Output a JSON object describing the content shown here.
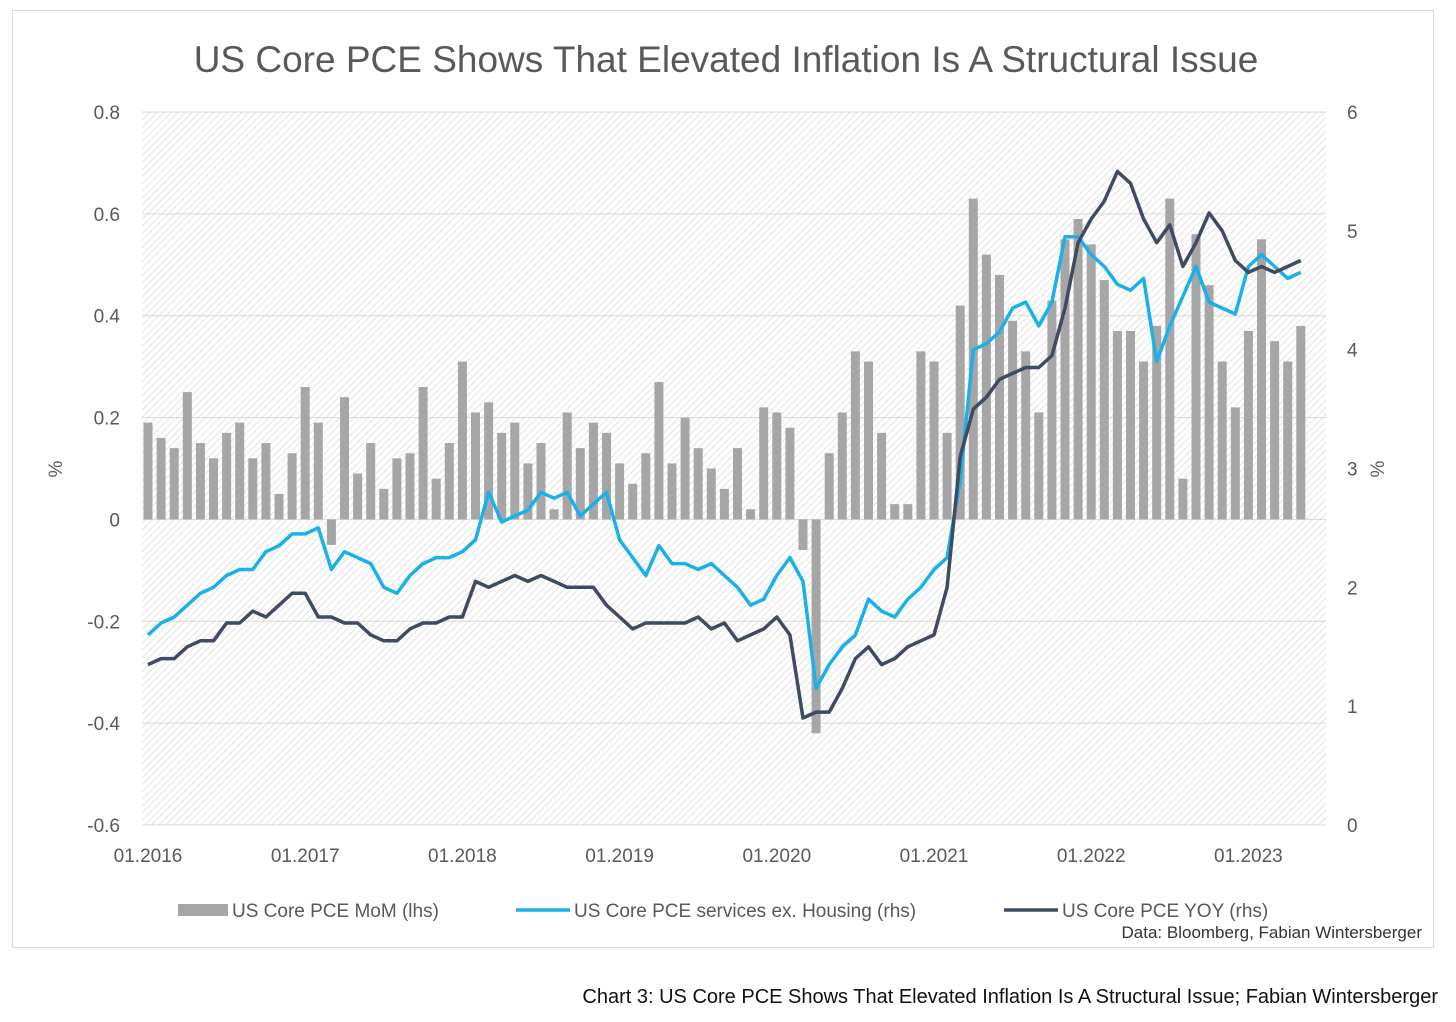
{
  "chart_data": {
    "type": "bar+line",
    "title": "US Core PCE Shows That Elevated Inflation Is A Structural Issue",
    "ylabel_left": "%",
    "ylabel_right": "%",
    "ylim_left": [
      -0.6,
      0.8
    ],
    "yticks_left": [
      "-0.6",
      "-0.4",
      "-0.2",
      "0",
      "0.2",
      "0.4",
      "0.6",
      "0.8"
    ],
    "ylim_right": [
      0,
      6
    ],
    "yticks_right": [
      "0",
      "1",
      "2",
      "3",
      "4",
      "5",
      "6"
    ],
    "x_tick_labels": [
      "01.2016",
      "01.2017",
      "01.2018",
      "01.2019",
      "01.2020",
      "01.2021",
      "01.2022",
      "01.2023"
    ],
    "x_start": "01.2016",
    "series": [
      {
        "name": "US Core PCE MoM (lhs)",
        "kind": "bar",
        "axis": "left",
        "color": "#a6a6a6",
        "values": [
          0.19,
          0.16,
          0.14,
          0.25,
          0.15,
          0.12,
          0.17,
          0.19,
          0.12,
          0.15,
          0.05,
          0.13,
          0.26,
          0.19,
          -0.05,
          0.24,
          0.09,
          0.15,
          0.06,
          0.12,
          0.13,
          0.26,
          0.08,
          0.15,
          0.31,
          0.21,
          0.23,
          0.17,
          0.19,
          0.11,
          0.15,
          0.02,
          0.21,
          0.14,
          0.19,
          0.17,
          0.11,
          0.07,
          0.13,
          0.27,
          0.11,
          0.2,
          0.14,
          0.1,
          0.06,
          0.14,
          0.02,
          0.22,
          0.21,
          0.18,
          -0.06,
          -0.42,
          0.13,
          0.21,
          0.33,
          0.31,
          0.17,
          0.03,
          0.03,
          0.33,
          0.31,
          0.17,
          0.42,
          0.63,
          0.52,
          0.48,
          0.39,
          0.33,
          0.21,
          0.43,
          0.55,
          0.59,
          0.54,
          0.47,
          0.37,
          0.37,
          0.31,
          0.38,
          0.63,
          0.08,
          0.56,
          0.46,
          0.31,
          0.22,
          0.37,
          0.55,
          0.35,
          0.31,
          0.38
        ]
      },
      {
        "name": "US Core PCE services ex. Housing (rhs)",
        "kind": "line",
        "axis": "right",
        "color": "#1ab0e8",
        "values": [
          1.6,
          1.7,
          1.75,
          1.85,
          1.95,
          2.0,
          2.1,
          2.15,
          2.15,
          2.3,
          2.35,
          2.45,
          2.45,
          2.5,
          2.15,
          2.3,
          2.25,
          2.2,
          2.0,
          1.95,
          2.1,
          2.2,
          2.25,
          2.25,
          2.3,
          2.4,
          2.8,
          2.55,
          2.6,
          2.65,
          2.8,
          2.75,
          2.8,
          2.6,
          2.7,
          2.8,
          2.4,
          2.25,
          2.1,
          2.35,
          2.2,
          2.2,
          2.15,
          2.2,
          2.1,
          2.0,
          1.85,
          1.9,
          2.1,
          2.25,
          2.05,
          1.15,
          1.35,
          1.5,
          1.6,
          1.9,
          1.8,
          1.75,
          1.9,
          2.0,
          2.15,
          2.25,
          2.9,
          4.0,
          4.05,
          4.15,
          4.35,
          4.4,
          4.2,
          4.4,
          4.95,
          4.95,
          4.8,
          4.7,
          4.55,
          4.5,
          4.6,
          3.9,
          4.2,
          4.45,
          4.7,
          4.4,
          4.35,
          4.3,
          4.7,
          4.8,
          4.7,
          4.6,
          4.65
        ]
      },
      {
        "name": "US Core PCE YOY (rhs)",
        "kind": "line",
        "axis": "right",
        "color": "#3e4b61",
        "values": [
          1.35,
          1.4,
          1.4,
          1.5,
          1.55,
          1.55,
          1.7,
          1.7,
          1.8,
          1.75,
          1.85,
          1.95,
          1.95,
          1.75,
          1.75,
          1.7,
          1.7,
          1.6,
          1.55,
          1.55,
          1.65,
          1.7,
          1.7,
          1.75,
          1.75,
          2.05,
          2.0,
          2.05,
          2.1,
          2.05,
          2.1,
          2.05,
          2.0,
          2.0,
          2.0,
          1.85,
          1.75,
          1.65,
          1.7,
          1.7,
          1.7,
          1.7,
          1.75,
          1.65,
          1.7,
          1.55,
          1.6,
          1.65,
          1.75,
          1.6,
          0.9,
          0.95,
          0.95,
          1.15,
          1.4,
          1.5,
          1.35,
          1.4,
          1.5,
          1.55,
          1.6,
          2.0,
          3.1,
          3.5,
          3.6,
          3.75,
          3.8,
          3.85,
          3.85,
          3.95,
          4.35,
          4.9,
          5.1,
          5.25,
          5.5,
          5.4,
          5.1,
          4.9,
          5.05,
          4.7,
          4.9,
          5.15,
          5.0,
          4.75,
          4.65,
          4.7,
          4.65,
          4.7,
          4.75
        ]
      }
    ],
    "legend_position": "bottom",
    "source_note": "Data: Bloomberg, Fabian Wintersberger"
  },
  "caption": "Chart 3: US Core PCE Shows That Elevated Inflation Is A Structural Issue; Fabian Wintersberger"
}
